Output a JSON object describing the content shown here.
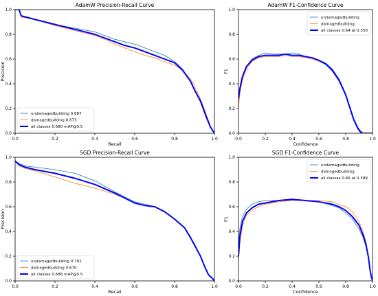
{
  "colors": {
    "undamaged": "#1f77b4",
    "damaged": "#ff7f0e",
    "all": "#0000ff"
  },
  "chart_data": [
    {
      "type": "line",
      "title": "AdamW Precision-Recall Curve",
      "xlabel": "Recall",
      "ylabel": "Precision",
      "xlim": [
        0,
        1
      ],
      "ylim": [
        0,
        1
      ],
      "ticks": [
        "0.0",
        "0.2",
        "0.4",
        "0.6",
        "0.8",
        "1.0"
      ],
      "legend_position": "lower-left",
      "series": [
        {
          "name": "undamagedbuilding 0.687",
          "color_key": "undamaged",
          "width": 0.8,
          "x": [
            0,
            0.02,
            0.03,
            0.1,
            0.2,
            0.3,
            0.4,
            0.45,
            0.5,
            0.55,
            0.6,
            0.65,
            0.7,
            0.75,
            0.8,
            0.84,
            0.88,
            0.9,
            0.93,
            0.96,
            0.98,
            1.0
          ],
          "y": [
            1.0,
            1.0,
            0.95,
            0.92,
            0.88,
            0.85,
            0.82,
            0.79,
            0.76,
            0.74,
            0.72,
            0.69,
            0.66,
            0.63,
            0.58,
            0.52,
            0.42,
            0.35,
            0.25,
            0.12,
            0.05,
            0.0
          ]
        },
        {
          "name": "damagedbuilding 0.673",
          "color_key": "damaged",
          "width": 0.8,
          "x": [
            0,
            0.02,
            0.03,
            0.1,
            0.2,
            0.3,
            0.4,
            0.45,
            0.5,
            0.55,
            0.6,
            0.65,
            0.7,
            0.75,
            0.8,
            0.84,
            0.88,
            0.9,
            0.93,
            0.96,
            0.98,
            1.0
          ],
          "y": [
            1.0,
            1.0,
            0.94,
            0.92,
            0.87,
            0.83,
            0.79,
            0.76,
            0.72,
            0.69,
            0.66,
            0.63,
            0.61,
            0.58,
            0.55,
            0.51,
            0.44,
            0.38,
            0.28,
            0.15,
            0.06,
            0.0
          ]
        },
        {
          "name": "all classes 0.680 mAP@0.5",
          "color_key": "all",
          "width": 2,
          "x": [
            0,
            0.02,
            0.03,
            0.1,
            0.2,
            0.3,
            0.4,
            0.45,
            0.5,
            0.55,
            0.6,
            0.65,
            0.7,
            0.75,
            0.8,
            0.84,
            0.88,
            0.9,
            0.93,
            0.96,
            0.98,
            1.0
          ],
          "y": [
            1.0,
            1.0,
            0.95,
            0.92,
            0.88,
            0.84,
            0.8,
            0.77,
            0.74,
            0.71,
            0.69,
            0.66,
            0.63,
            0.6,
            0.57,
            0.51,
            0.42,
            0.35,
            0.26,
            0.13,
            0.05,
            0.0
          ]
        }
      ]
    },
    {
      "type": "line",
      "title": "AdamW F1-Confidence Curve",
      "xlabel": "Confidence",
      "ylabel": "F1",
      "xlim": [
        0,
        1
      ],
      "ylim": [
        0,
        1
      ],
      "ticks": [
        "0.0",
        "0.2",
        "0.4",
        "0.6",
        "0.8",
        "1.0"
      ],
      "legend_position": "top-right",
      "series": [
        {
          "name": "undamagedbuilding",
          "color_key": "undamaged",
          "width": 0.8,
          "x": [
            0,
            0.01,
            0.03,
            0.06,
            0.1,
            0.15,
            0.2,
            0.25,
            0.3,
            0.35,
            0.4,
            0.45,
            0.5,
            0.55,
            0.6,
            0.65,
            0.7,
            0.75,
            0.8,
            0.83,
            0.86,
            0.89,
            0.91,
            0.93,
            0.95,
            1.0
          ],
          "y": [
            0.27,
            0.35,
            0.45,
            0.54,
            0.6,
            0.63,
            0.65,
            0.64,
            0.64,
            0.64,
            0.65,
            0.64,
            0.62,
            0.61,
            0.59,
            0.57,
            0.52,
            0.44,
            0.32,
            0.22,
            0.12,
            0.05,
            0.02,
            0.0,
            0.0,
            0.0
          ]
        },
        {
          "name": "damagedbuilding",
          "color_key": "damaged",
          "width": 0.8,
          "x": [
            0,
            0.01,
            0.03,
            0.06,
            0.1,
            0.15,
            0.2,
            0.25,
            0.3,
            0.35,
            0.4,
            0.45,
            0.5,
            0.55,
            0.6,
            0.65,
            0.7,
            0.75,
            0.8,
            0.83,
            0.86,
            0.89,
            0.91,
            0.93,
            0.95,
            1.0
          ],
          "y": [
            0.2,
            0.32,
            0.43,
            0.52,
            0.58,
            0.61,
            0.62,
            0.62,
            0.62,
            0.63,
            0.62,
            0.62,
            0.61,
            0.6,
            0.58,
            0.56,
            0.5,
            0.42,
            0.31,
            0.21,
            0.11,
            0.04,
            0.01,
            0.0,
            0.0,
            0.0
          ]
        },
        {
          "name": "all classes 0.64 at 0.350",
          "color_key": "all",
          "width": 2,
          "x": [
            0,
            0.01,
            0.03,
            0.06,
            0.1,
            0.15,
            0.2,
            0.25,
            0.3,
            0.35,
            0.4,
            0.45,
            0.5,
            0.55,
            0.6,
            0.65,
            0.7,
            0.75,
            0.8,
            0.83,
            0.86,
            0.89,
            0.91,
            0.93,
            0.95,
            1.0
          ],
          "y": [
            0.28,
            0.36,
            0.46,
            0.54,
            0.59,
            0.62,
            0.63,
            0.63,
            0.63,
            0.64,
            0.63,
            0.63,
            0.62,
            0.61,
            0.59,
            0.56,
            0.51,
            0.43,
            0.31,
            0.21,
            0.11,
            0.04,
            0.01,
            0.0,
            0.0,
            0.0
          ]
        }
      ]
    },
    {
      "type": "line",
      "title": "SGD Precision-Recall Curve",
      "xlabel": "Recall",
      "ylabel": "Precision",
      "xlim": [
        0,
        1
      ],
      "ylim": [
        0,
        1
      ],
      "ticks": [
        "0.0",
        "0.2",
        "0.4",
        "0.6",
        "0.8",
        "1.0"
      ],
      "legend_position": "lower-left",
      "series": [
        {
          "name": "undamagedbuilding 0.702",
          "color_key": "undamaged",
          "width": 0.8,
          "x": [
            0,
            0.02,
            0.05,
            0.1,
            0.2,
            0.3,
            0.4,
            0.5,
            0.55,
            0.6,
            0.65,
            0.7,
            0.75,
            0.8,
            0.85,
            0.88,
            0.9,
            0.93,
            0.95,
            0.97,
            0.99,
            1.0
          ],
          "y": [
            0.97,
            0.95,
            0.93,
            0.92,
            0.9,
            0.87,
            0.81,
            0.72,
            0.68,
            0.64,
            0.62,
            0.6,
            0.56,
            0.5,
            0.43,
            0.35,
            0.3,
            0.2,
            0.12,
            0.05,
            0.02,
            0.0
          ]
        },
        {
          "name": "damagedbuilding 0.670",
          "color_key": "damaged",
          "width": 0.8,
          "x": [
            0,
            0.02,
            0.05,
            0.1,
            0.2,
            0.3,
            0.4,
            0.5,
            0.55,
            0.6,
            0.65,
            0.7,
            0.75,
            0.8,
            0.85,
            0.88,
            0.9,
            0.93,
            0.95,
            0.97,
            0.99,
            1.0
          ],
          "y": [
            0.97,
            0.93,
            0.91,
            0.89,
            0.84,
            0.79,
            0.75,
            0.7,
            0.67,
            0.63,
            0.61,
            0.6,
            0.56,
            0.5,
            0.43,
            0.36,
            0.29,
            0.2,
            0.12,
            0.05,
            0.02,
            0.0
          ]
        },
        {
          "name": "all classes 0.686 mAP@0.5",
          "color_key": "all",
          "width": 2,
          "x": [
            0,
            0.02,
            0.05,
            0.1,
            0.2,
            0.3,
            0.4,
            0.5,
            0.55,
            0.6,
            0.65,
            0.7,
            0.75,
            0.8,
            0.85,
            0.88,
            0.9,
            0.93,
            0.95,
            0.97,
            0.99,
            1.0
          ],
          "y": [
            0.97,
            0.94,
            0.92,
            0.9,
            0.87,
            0.83,
            0.78,
            0.71,
            0.67,
            0.63,
            0.61,
            0.6,
            0.56,
            0.5,
            0.43,
            0.35,
            0.29,
            0.2,
            0.12,
            0.05,
            0.02,
            0.0
          ]
        }
      ]
    },
    {
      "type": "line",
      "title": "SGD F1-Confidence Curve",
      "xlabel": "Confidence",
      "ylabel": "F1",
      "xlim": [
        0,
        1
      ],
      "ylim": [
        0,
        1
      ],
      "ticks": [
        "0.0",
        "0.2",
        "0.4",
        "0.6",
        "0.8",
        "1.0"
      ],
      "legend_position": "top-right",
      "series": [
        {
          "name": "undamagedbuilding",
          "color_key": "undamaged",
          "width": 0.8,
          "x": [
            0,
            0.01,
            0.03,
            0.06,
            0.1,
            0.15,
            0.2,
            0.3,
            0.4,
            0.5,
            0.6,
            0.7,
            0.75,
            0.8,
            0.85,
            0.9,
            0.93,
            0.95,
            0.97,
            0.98,
            0.99,
            1.0
          ],
          "y": [
            0.3,
            0.42,
            0.52,
            0.58,
            0.62,
            0.64,
            0.65,
            0.65,
            0.65,
            0.65,
            0.64,
            0.61,
            0.59,
            0.55,
            0.5,
            0.42,
            0.35,
            0.28,
            0.18,
            0.1,
            0.04,
            0.0
          ]
        },
        {
          "name": "damagedbuilding",
          "color_key": "damaged",
          "width": 0.8,
          "x": [
            0,
            0.01,
            0.03,
            0.06,
            0.1,
            0.15,
            0.2,
            0.3,
            0.4,
            0.5,
            0.6,
            0.7,
            0.75,
            0.8,
            0.85,
            0.9,
            0.93,
            0.95,
            0.97,
            0.98,
            0.99,
            1.0
          ],
          "y": [
            0.15,
            0.3,
            0.45,
            0.53,
            0.57,
            0.6,
            0.62,
            0.64,
            0.65,
            0.65,
            0.65,
            0.64,
            0.62,
            0.6,
            0.56,
            0.48,
            0.4,
            0.32,
            0.2,
            0.1,
            0.04,
            0.0
          ]
        },
        {
          "name": "all classes 0.66 at 0.399",
          "color_key": "all",
          "width": 2,
          "x": [
            0,
            0.01,
            0.03,
            0.06,
            0.1,
            0.15,
            0.2,
            0.3,
            0.4,
            0.5,
            0.6,
            0.7,
            0.75,
            0.8,
            0.85,
            0.9,
            0.93,
            0.95,
            0.97,
            0.98,
            0.99,
            1.0
          ],
          "y": [
            0.2,
            0.36,
            0.48,
            0.55,
            0.59,
            0.62,
            0.63,
            0.65,
            0.66,
            0.65,
            0.64,
            0.62,
            0.6,
            0.57,
            0.52,
            0.45,
            0.37,
            0.3,
            0.19,
            0.1,
            0.04,
            0.0
          ]
        }
      ]
    }
  ]
}
